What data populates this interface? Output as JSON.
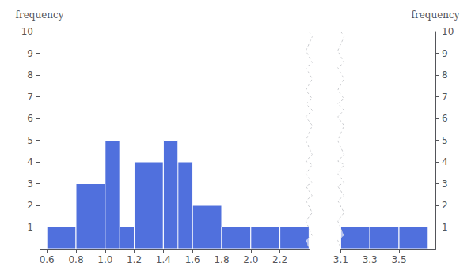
{
  "chart_data": {
    "type": "bar",
    "x": [
      0.6,
      0.8,
      1.0,
      1.0,
      1.2,
      1.4,
      1.4,
      1.6,
      1.8,
      2.0,
      2.2,
      3.1,
      3.3,
      3.5
    ],
    "widths": [
      0.2,
      0.2,
      0.2,
      0.1,
      0.2,
      0.2,
      0.1,
      0.2,
      0.2,
      0.2,
      0.2,
      0.2,
      0.2,
      0.2
    ],
    "values": [
      1,
      3,
      1,
      5,
      4,
      4,
      5,
      2,
      1,
      1,
      1,
      1,
      1,
      1
    ],
    "xlim": [
      0.55,
      3.75
    ],
    "xticks": [
      0.6,
      0.8,
      {
        "value": 1.0,
        "label": "1.0"
      },
      1.2,
      1.4,
      1.6,
      1.8,
      {
        "value": 2.0,
        "label": "2.0"
      },
      2.2,
      3.1,
      3.3,
      3.5
    ],
    "x_break": [
      2.4,
      3.1
    ],
    "ylim": [
      0,
      10
    ],
    "yticks": [
      1,
      2,
      3,
      4,
      5,
      6,
      7,
      8,
      9,
      10
    ],
    "ylabel": "frequency",
    "y2lim": [
      0,
      10
    ],
    "y2ticks": [
      1,
      2,
      3,
      4,
      5,
      6,
      7,
      8,
      9,
      10
    ],
    "y2label": "frequency",
    "grid": false
  }
}
